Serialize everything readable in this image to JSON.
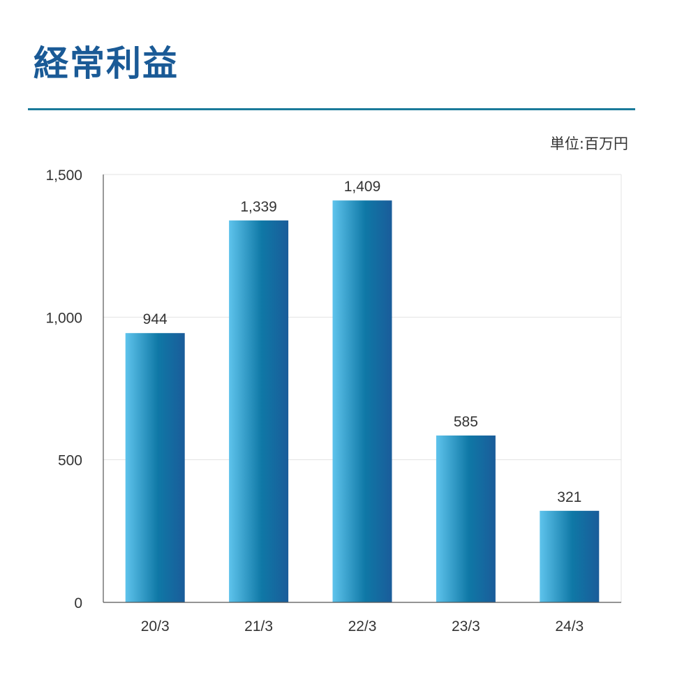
{
  "page": {
    "title": "経常利益",
    "unit": "単位:百万円"
  },
  "colors": {
    "title": "#1a5a96",
    "rule": "#1a7a9a",
    "bar_light": "#5ec3ec",
    "bar_mid": "#0f78a6",
    "bar_dark": "#1a5c9a",
    "grid": "#e3e3e3",
    "axis": "#555555",
    "text": "#333333"
  },
  "chart_data": {
    "type": "bar",
    "title": "経常利益",
    "xlabel": "",
    "ylabel": "",
    "unit": "単位:百万円",
    "categories": [
      "20/3",
      "21/3",
      "22/3",
      "23/3",
      "24/3"
    ],
    "values": [
      944,
      1339,
      1409,
      585,
      321
    ],
    "value_labels": [
      "944",
      "1,339",
      "1,409",
      "585",
      "321"
    ],
    "ylim": [
      0,
      1500
    ],
    "yticks": [
      0,
      500,
      1000,
      1500
    ],
    "ytick_labels": [
      "0",
      "500",
      "1,000",
      "1,500"
    ],
    "grid": true,
    "legend": "none"
  }
}
